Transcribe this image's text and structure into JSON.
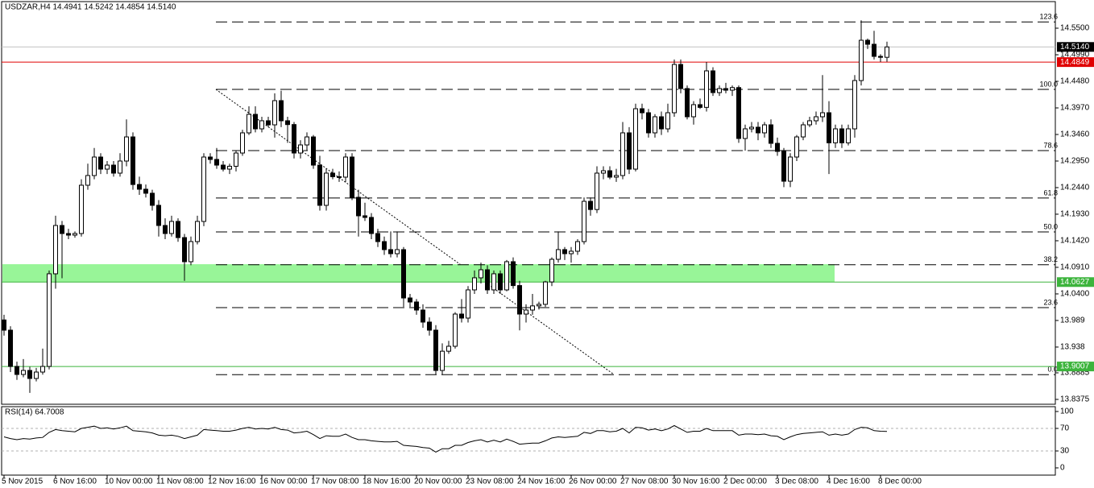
{
  "chart_data": {
    "type": "candlestick",
    "title": "USDZAR,H4 14.4941 14.5242 14.4854 14.5140",
    "up_color": "#ffffff",
    "down_color": "#000000",
    "ylim": [
      13.8282,
      14.601
    ],
    "yticks": [
      {
        "value": 14.55,
        "label": "14.5500"
      },
      {
        "value": 14.499,
        "label": "14.4990"
      },
      {
        "value": 14.448,
        "label": "14.4480"
      },
      {
        "value": 14.397,
        "label": "14.3970"
      },
      {
        "value": 14.346,
        "label": "14.3460"
      },
      {
        "value": 14.295,
        "label": "14.2950"
      },
      {
        "value": 14.244,
        "label": "14.2440"
      },
      {
        "value": 14.193,
        "label": "14.1930"
      },
      {
        "value": 14.142,
        "label": "14.1420"
      },
      {
        "value": 14.091,
        "label": "14.0910"
      },
      {
        "value": 14.04,
        "label": "14.0400"
      },
      13.989,
      13.938,
      13.8885,
      13.8375
    ],
    "categories": [
      "5 Nov 2015",
      null,
      null,
      null,
      null,
      null,
      null,
      null,
      "6 Nov 16:00",
      null,
      null,
      null,
      null,
      null,
      null,
      null,
      "10 Nov 00:00",
      null,
      null,
      null,
      null,
      null,
      null,
      null,
      "11 Nov 08:00",
      null,
      null,
      null,
      null,
      null,
      null,
      null,
      "12 Nov 16:00",
      null,
      null,
      null,
      null,
      null,
      null,
      null,
      "16 Nov 00:00",
      null,
      null,
      null,
      null,
      null,
      null,
      null,
      "17 Nov 08:00",
      null,
      null,
      null,
      null,
      null,
      null,
      null,
      "18 Nov 16:00",
      null,
      null,
      null,
      null,
      null,
      null,
      null,
      "20 Nov 00:00",
      null,
      null,
      null,
      null,
      null,
      null,
      null,
      "23 Nov 08:00",
      null,
      null,
      null,
      null,
      null,
      null,
      null,
      "24 Nov 16:00",
      null,
      null,
      null,
      null,
      null,
      null,
      null,
      "26 Nov 00:00",
      null,
      null,
      null,
      null,
      null,
      null,
      null,
      "27 Nov 08:00",
      null,
      null,
      null,
      null,
      null,
      null,
      null,
      "30 Nov 16:00",
      null,
      null,
      null,
      null,
      null,
      null,
      null,
      "2 Dec 00:00",
      null,
      null,
      null,
      null,
      null,
      null,
      null,
      "3 Dec 08:00",
      null,
      null,
      null,
      null,
      null,
      null,
      null,
      "4 Dec 16:00",
      null,
      null,
      null,
      null,
      null,
      null,
      null,
      "8 Dec 00:00",
      null
    ],
    "candles": [
      [
        13.99,
        14.0,
        13.96,
        13.9704
      ],
      [
        13.9704,
        13.978,
        13.89,
        13.9008
      ],
      [
        13.9008,
        13.91,
        13.875,
        13.8854
      ],
      [
        13.8854,
        13.915,
        13.88,
        13.8931
      ],
      [
        13.8931,
        13.9,
        13.85,
        13.8777
      ],
      [
        13.8777,
        13.898,
        13.872,
        13.89
      ],
      [
        13.89,
        13.935,
        13.885,
        13.9008
      ],
      [
        13.9008,
        14.085,
        13.895,
        14.0786
      ],
      [
        14.0786,
        14.19,
        14.05,
        14.1713
      ],
      [
        14.1713,
        14.18,
        14.07,
        14.1559
      ],
      [
        14.1559,
        14.165,
        14.145,
        14.1528
      ],
      [
        14.1528,
        14.16,
        14.148,
        14.1559
      ],
      [
        14.1559,
        14.26,
        14.15,
        14.2486
      ],
      [
        14.2486,
        14.29,
        14.24,
        14.2672
      ],
      [
        14.2672,
        14.32,
        14.26,
        14.3027
      ],
      [
        14.3027,
        14.31,
        14.27,
        14.2795
      ],
      [
        14.2795,
        14.295,
        14.27,
        14.2872
      ],
      [
        14.2872,
        14.295,
        14.265,
        14.2718
      ],
      [
        14.2718,
        14.31,
        14.265,
        14.295
      ],
      [
        14.295,
        14.375,
        14.285,
        14.3413
      ],
      [
        14.3413,
        14.35,
        14.24,
        14.25
      ],
      [
        14.25,
        14.265,
        14.23,
        14.2409
      ],
      [
        14.2409,
        14.25,
        14.225,
        14.2332
      ],
      [
        14.2332,
        14.24,
        14.2,
        14.21
      ],
      [
        14.21,
        14.22,
        14.15,
        14.1713
      ],
      [
        14.1713,
        14.185,
        14.145,
        14.1559
      ],
      [
        14.1559,
        14.19,
        14.15,
        14.1791
      ],
      [
        14.1791,
        14.185,
        14.14,
        14.1481
      ],
      [
        14.1481,
        14.155,
        14.065,
        14.1018
      ],
      [
        14.1018,
        14.15,
        14.095,
        14.1404
      ],
      [
        14.1404,
        14.19,
        14.135,
        14.1791
      ],
      [
        14.1791,
        14.31,
        14.17,
        14.3027
      ],
      [
        14.3027,
        14.31,
        14.29,
        14.2981
      ],
      [
        14.2981,
        14.32,
        14.28,
        14.2872
      ],
      [
        14.2872,
        14.295,
        14.275,
        14.2795
      ],
      [
        14.2795,
        14.29,
        14.27,
        14.285
      ],
      [
        14.285,
        14.315,
        14.275,
        14.3104
      ],
      [
        14.3104,
        14.355,
        14.305,
        14.3491
      ],
      [
        14.3491,
        14.4,
        14.345,
        14.3846
      ],
      [
        14.3846,
        14.4,
        14.35,
        14.3568
      ],
      [
        14.3568,
        14.38,
        14.35,
        14.3723
      ],
      [
        14.3723,
        14.38,
        14.36,
        14.3645
      ],
      [
        14.3645,
        14.425,
        14.34,
        14.4109
      ],
      [
        14.4109,
        14.43,
        14.36,
        14.3723
      ],
      [
        14.3723,
        14.38,
        14.33,
        14.365
      ],
      [
        14.365,
        14.37,
        14.3,
        14.3104
      ],
      [
        14.3104,
        14.335,
        14.3,
        14.3259
      ],
      [
        14.3259,
        14.35,
        14.315,
        14.3413
      ],
      [
        14.3413,
        14.345,
        14.28,
        14.2872
      ],
      [
        14.2872,
        14.305,
        14.2,
        14.21
      ],
      [
        14.21,
        14.28,
        14.2,
        14.2718
      ],
      [
        14.2718,
        14.28,
        14.26,
        14.265
      ],
      [
        14.265,
        14.275,
        14.255,
        14.2641
      ],
      [
        14.2641,
        14.31,
        14.255,
        14.3027
      ],
      [
        14.3027,
        14.31,
        14.22,
        14.2254
      ],
      [
        14.2254,
        14.24,
        14.15,
        14.1899
      ],
      [
        14.1899,
        14.215,
        14.18,
        14.1868
      ],
      [
        14.1868,
        14.195,
        14.145,
        14.1559
      ],
      [
        14.1559,
        14.165,
        14.13,
        14.1404
      ],
      [
        14.1404,
        14.15,
        14.115,
        14.125
      ],
      [
        14.125,
        14.16,
        14.11,
        14.1172
      ],
      [
        14.1172,
        14.16,
        14.11,
        14.125
      ],
      [
        14.125,
        14.13,
        14.015,
        14.0322
      ],
      [
        14.0322,
        14.04,
        14.015,
        14.0245
      ],
      [
        14.0245,
        14.03,
        14.0,
        14.009
      ],
      [
        14.009,
        14.02,
        13.975,
        13.9859
      ],
      [
        13.9859,
        13.995,
        13.96,
        13.9704
      ],
      [
        13.9704,
        13.98,
        13.885,
        13.8931
      ],
      [
        13.8931,
        13.945,
        13.885,
        13.93
      ],
      [
        13.93,
        13.95,
        13.925,
        13.9395
      ],
      [
        13.9395,
        14.005,
        13.935,
        14.0013
      ],
      [
        14.0013,
        14.03,
        13.985,
        13.9936
      ],
      [
        13.9936,
        14.055,
        13.985,
        14.0477
      ],
      [
        14.0477,
        14.085,
        14.04,
        14.0709
      ],
      [
        14.0709,
        14.1,
        14.06,
        14.0863
      ],
      [
        14.0863,
        14.095,
        14.04,
        14.0477
      ],
      [
        14.0477,
        14.085,
        14.04,
        14.0786
      ],
      [
        14.0786,
        14.085,
        14.04,
        14.0477
      ],
      [
        14.0477,
        14.105,
        14.045,
        14.1018
      ],
      [
        14.1018,
        14.11,
        14.05,
        14.056
      ],
      [
        14.056,
        14.065,
        13.97,
        14.0013
      ],
      [
        14.0013,
        14.02,
        13.985,
        14.009
      ],
      [
        14.009,
        14.04,
        14.0,
        14.017
      ],
      [
        14.017,
        14.025,
        14.01,
        14.02
      ],
      [
        14.02,
        14.065,
        14.015,
        14.063
      ],
      [
        14.063,
        14.11,
        14.055,
        14.1064
      ],
      [
        14.1064,
        14.16,
        14.1,
        14.125
      ],
      [
        14.125,
        14.13,
        14.105,
        14.1172
      ],
      [
        14.1172,
        14.13,
        14.1,
        14.1219
      ],
      [
        14.1219,
        14.145,
        14.115,
        14.1404
      ],
      [
        14.1404,
        14.225,
        14.135,
        14.2177
      ],
      [
        14.2177,
        14.225,
        14.19,
        14.202
      ],
      [
        14.202,
        14.285,
        14.195,
        14.2718
      ],
      [
        14.2718,
        14.285,
        14.26,
        14.2764
      ],
      [
        14.2764,
        14.285,
        14.26,
        14.2641
      ],
      [
        14.2641,
        14.28,
        14.255,
        14.2672
      ],
      [
        14.2672,
        14.37,
        14.26,
        14.3491
      ],
      [
        14.3491,
        14.36,
        14.27,
        14.2795
      ],
      [
        14.2795,
        14.405,
        14.275,
        14.3954
      ],
      [
        14.3954,
        14.405,
        14.375,
        14.3877
      ],
      [
        14.3877,
        14.395,
        14.34,
        14.3491
      ],
      [
        14.3491,
        14.385,
        14.34,
        14.38
      ],
      [
        14.38,
        14.39,
        14.345,
        14.3568
      ],
      [
        14.3568,
        14.405,
        14.35,
        14.3877
      ],
      [
        14.3877,
        14.49,
        14.38,
        14.4804
      ],
      [
        14.4804,
        14.49,
        14.425,
        14.4341
      ],
      [
        14.4341,
        14.44,
        14.375,
        14.38
      ],
      [
        14.38,
        14.41,
        14.365,
        14.4032
      ],
      [
        14.4032,
        14.415,
        14.395,
        14.398
      ],
      [
        14.398,
        14.485,
        14.39,
        14.4681
      ],
      [
        14.4681,
        14.475,
        14.42,
        14.4264
      ],
      [
        14.4264,
        14.44,
        14.42,
        14.4341
      ],
      [
        14.4341,
        14.445,
        14.425,
        14.431
      ],
      [
        14.431,
        14.44,
        14.42,
        14.436
      ],
      [
        14.436,
        14.44,
        14.33,
        14.3383
      ],
      [
        14.3383,
        14.365,
        14.315,
        14.3568
      ],
      [
        14.3568,
        14.37,
        14.35,
        14.3599
      ],
      [
        14.3599,
        14.37,
        14.335,
        14.3491
      ],
      [
        14.3491,
        14.37,
        14.34,
        14.3645
      ],
      [
        14.3645,
        14.375,
        14.32,
        14.329
      ],
      [
        14.329,
        14.34,
        14.305,
        14.3135
      ],
      [
        14.3135,
        14.32,
        14.245,
        14.2563
      ],
      [
        14.2563,
        14.31,
        14.245,
        14.3027
      ],
      [
        14.3027,
        14.345,
        14.295,
        14.3413
      ],
      [
        14.3413,
        14.37,
        14.335,
        14.3645
      ],
      [
        14.3645,
        14.38,
        14.36,
        14.3723
      ],
      [
        14.3723,
        14.39,
        14.365,
        14.38
      ],
      [
        14.38,
        14.46,
        14.37,
        14.3877
      ],
      [
        14.3877,
        14.41,
        14.27,
        14.33
      ],
      [
        14.33,
        14.365,
        14.32,
        14.3568
      ],
      [
        14.3568,
        14.365,
        14.32,
        14.33
      ],
      [
        14.33,
        14.365,
        14.325,
        14.3568
      ],
      [
        14.3568,
        14.46,
        14.34,
        14.4495
      ],
      [
        14.4495,
        14.565,
        14.44,
        14.5268
      ],
      [
        14.5268,
        14.53,
        14.51,
        14.5191
      ],
      [
        14.5191,
        14.545,
        14.49,
        14.4959
      ],
      [
        14.4959,
        14.5,
        14.485,
        14.4941
      ],
      [
        14.4941,
        14.5242,
        14.4854,
        14.514
      ]
    ],
    "fib_levels": [
      {
        "label": "123.6",
        "value": 14.562
      },
      {
        "label": "100.0",
        "value": 14.4325
      },
      {
        "label": "78.6",
        "value": 14.315
      },
      {
        "label": "61.8",
        "value": 14.224
      },
      {
        "label": "50.0",
        "value": 14.159
      },
      {
        "label": "38.2",
        "value": 14.096
      },
      {
        "label": "23.6",
        "value": 14.0137
      },
      {
        "label": "0.0",
        "value": 13.885
      }
    ],
    "zone": {
      "top": 14.097,
      "bottom": 14.0627,
      "color": "#98f598"
    },
    "price_levels": [
      {
        "value": 14.514,
        "label": "14.5140",
        "line_color": "#c0c0c0",
        "color": "#000000"
      },
      {
        "value": 14.4849,
        "label": "14.4849",
        "line_color": "#e00000",
        "color": "#e00000"
      },
      {
        "value": 14.0627,
        "label": "14.0627",
        "line_color": "#3cb43c",
        "color": "#3cb43c"
      },
      {
        "value": 13.9007,
        "label": "13.9007",
        "line_color": "#3cb43c",
        "color": "#3cb43c"
      }
    ],
    "rsi": {
      "label": "RSI(14) 64.7008",
      "color": "#000000",
      "ylim": [
        -12.86,
        108.57
      ],
      "yticks": [
        100,
        70,
        30,
        0
      ],
      "levels": [
        70,
        30
      ],
      "values": [
        55,
        52,
        50,
        52,
        51,
        53,
        54,
        63,
        68,
        66,
        65,
        64,
        70,
        72,
        74,
        70,
        71,
        69,
        71,
        74,
        66,
        65,
        64,
        62,
        58,
        57,
        58,
        56,
        52,
        55,
        58,
        68,
        67,
        66,
        65,
        65,
        67,
        70,
        72,
        69,
        70,
        69,
        72,
        68,
        67,
        62,
        63,
        65,
        59,
        52,
        57,
        56,
        56,
        60,
        54,
        50,
        50,
        48,
        47,
        46,
        46,
        47,
        40,
        39,
        38,
        36,
        35,
        28,
        34,
        34,
        40,
        40,
        45,
        48,
        50,
        46,
        49,
        46,
        51,
        47,
        42,
        43,
        44,
        44,
        48,
        53,
        55,
        54,
        55,
        56,
        63,
        61,
        66,
        66,
        64,
        65,
        70,
        62,
        72,
        71,
        67,
        69,
        66,
        69,
        75,
        69,
        63,
        65,
        65,
        70,
        66,
        66,
        66,
        66,
        58,
        60,
        60,
        59,
        60,
        57,
        56,
        50,
        55,
        59,
        61,
        62,
        63,
        64,
        58,
        60,
        58,
        60,
        68,
        72,
        71,
        66,
        65,
        64.7008
      ]
    }
  }
}
